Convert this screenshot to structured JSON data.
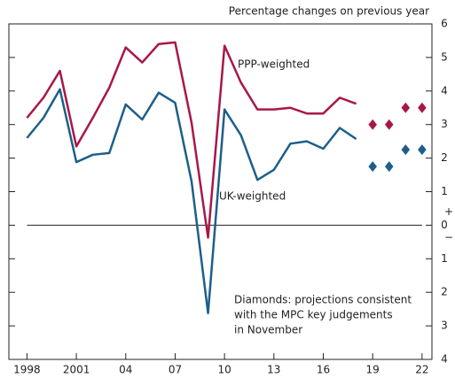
{
  "chart_data": {
    "type": "line",
    "subtitle": "Percentage changes on previous year",
    "annotation": [
      "Diamonds: projections consistent",
      "with the MPC key judgements",
      "in November"
    ],
    "y_sign_labels": [
      "+",
      "−"
    ],
    "xlim": [
      1996.9,
      2022.6
    ],
    "xticks": [
      1998,
      2001,
      {
        "value": 2004,
        "label": "04"
      },
      {
        "value": 2007,
        "label": "07"
      },
      {
        "value": 2010,
        "label": "10"
      },
      {
        "value": 2013,
        "label": "13"
      },
      {
        "value": 2016,
        "label": "16"
      },
      {
        "value": 2019,
        "label": "19"
      },
      {
        "value": 2022,
        "label": "22"
      }
    ],
    "ylim": [
      -4,
      6
    ],
    "yticks": [
      {
        "value": -4,
        "label": "4"
      },
      {
        "value": -3,
        "label": "3"
      },
      {
        "value": -2,
        "label": "2"
      },
      {
        "value": -1,
        "label": "1"
      },
      0,
      1,
      2,
      3,
      4,
      5,
      6
    ],
    "series": [
      {
        "name": "PPP-weighted",
        "color": "#a8174a",
        "x": [
          1998,
          1999,
          2000,
          2001,
          2002,
          2003,
          2004,
          2005,
          2006,
          2007,
          2008,
          2009,
          2010,
          2011,
          2012,
          2013,
          2014,
          2015,
          2016,
          2017,
          2018
        ],
        "values": [
          3.2,
          3.8,
          4.6,
          2.35,
          3.2,
          4.1,
          5.3,
          4.85,
          5.4,
          5.45,
          3.05,
          -0.37,
          5.35,
          4.25,
          3.45,
          3.45,
          3.5,
          3.33,
          3.33,
          3.8,
          3.62
        ]
      },
      {
        "name": "UK-weighted",
        "color": "#1d5f8a",
        "x": [
          1998,
          1999,
          2000,
          2001,
          2002,
          2003,
          2004,
          2005,
          2006,
          2007,
          2008,
          2009,
          2010,
          2011,
          2012,
          2013,
          2014,
          2015,
          2016,
          2017,
          2018
        ],
        "values": [
          2.6,
          3.2,
          4.05,
          1.88,
          2.1,
          2.15,
          3.6,
          3.15,
          3.95,
          3.65,
          1.3,
          -2.62,
          3.45,
          2.68,
          1.35,
          1.65,
          2.43,
          2.5,
          2.28,
          2.9,
          2.57
        ]
      },
      {
        "color": "#a8174a",
        "marker": "diamond",
        "x": [
          2019,
          2020,
          2021,
          2022
        ],
        "values": [
          3.0,
          3.0,
          3.5,
          3.5
        ]
      },
      {
        "color": "#1d5f8a",
        "marker": "diamond",
        "x": [
          2019,
          2020,
          2021,
          2022
        ],
        "values": [
          1.75,
          1.75,
          2.25,
          2.25
        ]
      }
    ]
  }
}
